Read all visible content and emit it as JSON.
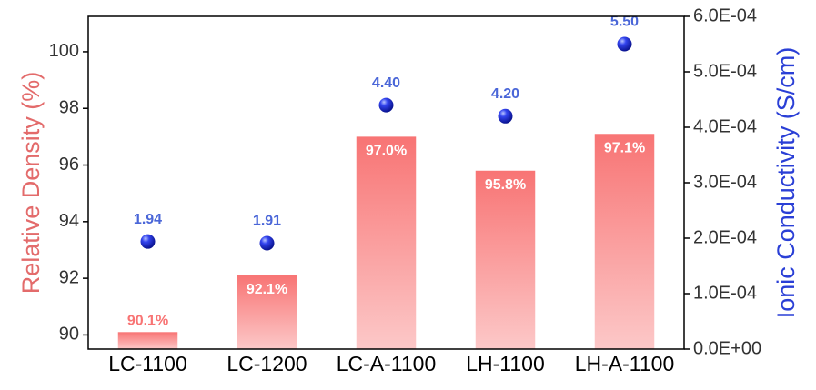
{
  "chart_data": {
    "type": "bar",
    "categories": [
      "LC-1100",
      "LC-1200",
      "LC-A-1100",
      "LH-1100",
      "LH-A-1100"
    ],
    "ylabel": "Relative Density (%)",
    "y2label": "Ionic Conductivity (S/cm)",
    "ylim": [
      89.5,
      101.25
    ],
    "yticks": [
      90,
      92,
      94,
      96,
      98,
      100
    ],
    "y2lim": [
      0,
      0.0006
    ],
    "y2ticks": [
      {
        "value": 0,
        "label": "0.0E+00"
      },
      {
        "value": 0.0001,
        "label": "1.0E-04"
      },
      {
        "value": 0.0002,
        "label": "2.0E-04"
      },
      {
        "value": 0.0003,
        "label": "3.0E-04"
      },
      {
        "value": 0.0004,
        "label": "4.0E-04"
      },
      {
        "value": 0.0005,
        "label": "5.0E-04"
      },
      {
        "value": 0.0006,
        "label": "6.0E-04"
      }
    ],
    "ycolor": "#e36b6b",
    "y2color": "#2a3fd6",
    "series": [
      {
        "type": "bar",
        "color": "#f87474",
        "values": [
          90.1,
          92.1,
          97.0,
          95.8,
          97.1
        ],
        "value_labels": [
          "90.1%",
          "92.1%",
          "97.0%",
          "95.8%",
          "97.1%"
        ]
      },
      {
        "type": "scatter",
        "axis": "y2",
        "color": "#2233dd",
        "values": [
          0.000194,
          0.000191,
          0.00044,
          0.00042,
          0.00055
        ],
        "value_labels": [
          "1.94",
          "1.91",
          "4.40",
          "4.20",
          "5.50"
        ]
      }
    ]
  }
}
